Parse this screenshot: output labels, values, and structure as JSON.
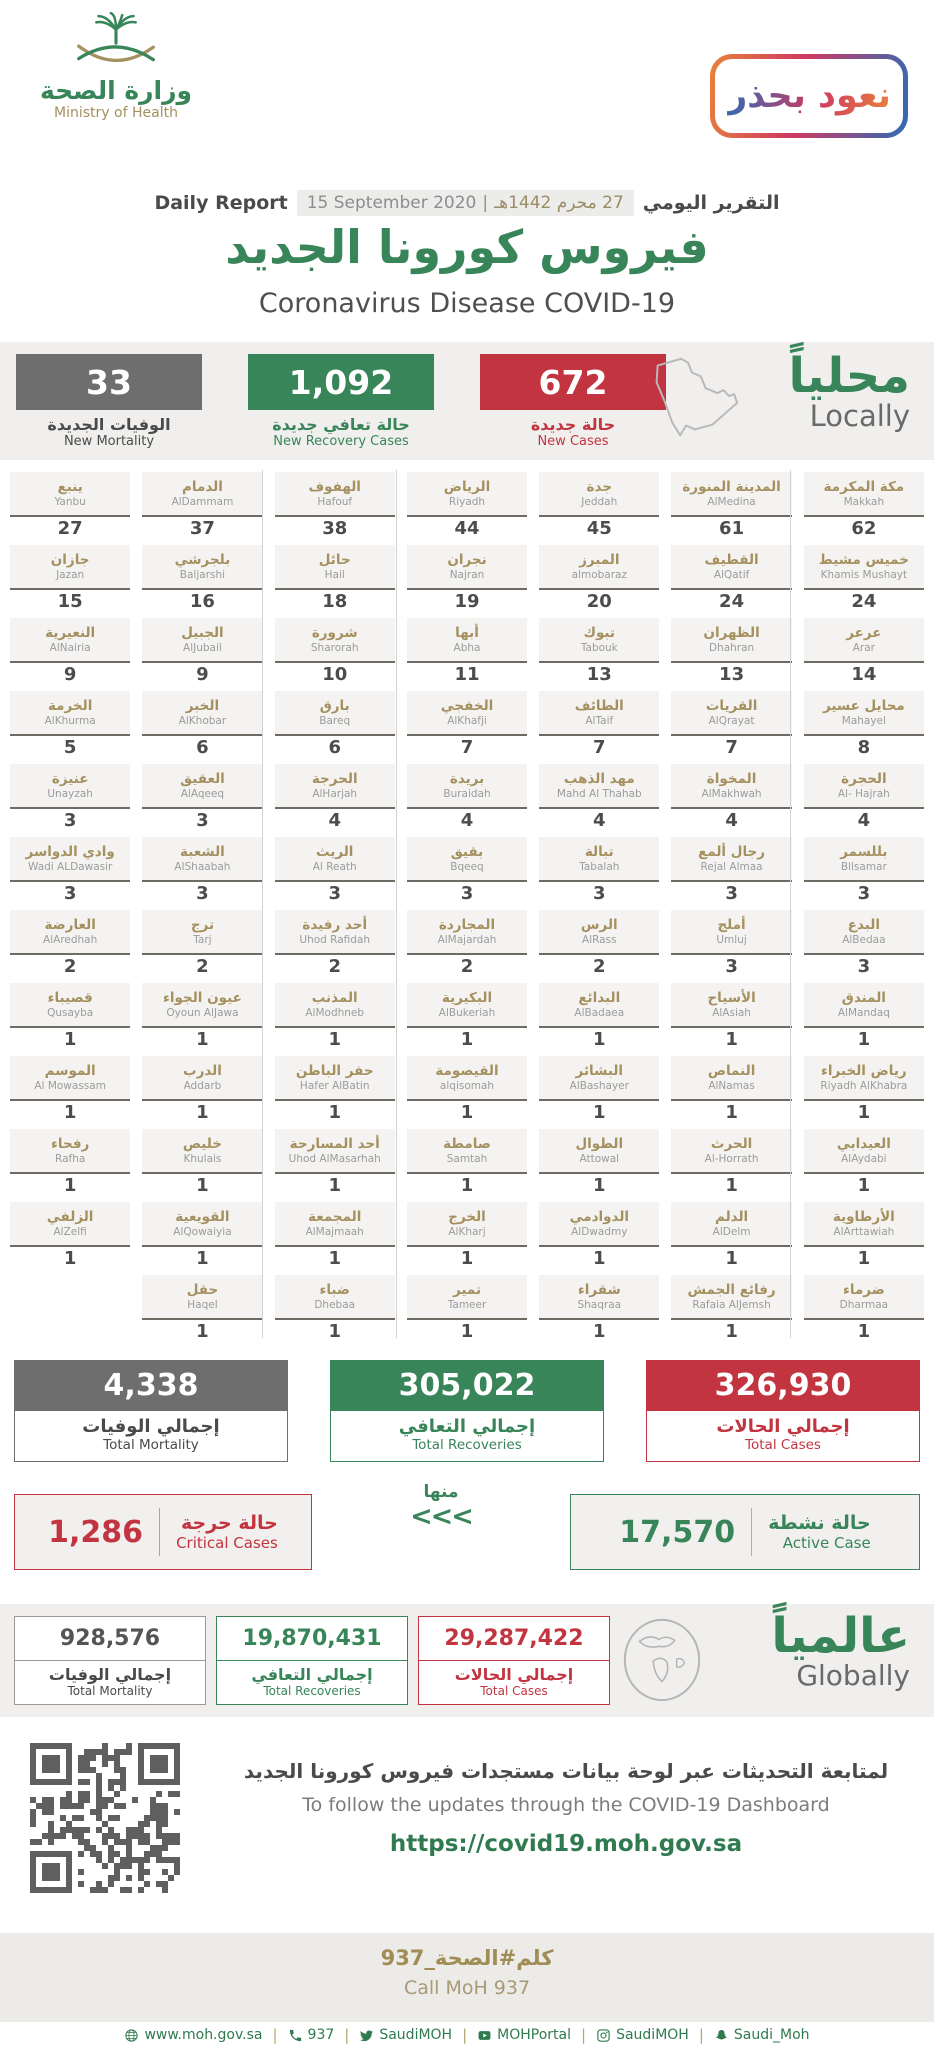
{
  "colors": {
    "green": "#38855a",
    "red": "#c23540",
    "gray": "#6e6e6e",
    "gold": "#a5905f",
    "dark": "#4a4a4a"
  },
  "header": {
    "logo": {
      "arabic": "وزارة الصحة",
      "english": "Ministry of Health"
    },
    "badge_text": "نعود بحذر",
    "report_label_en": "Daily Report",
    "report_date_en": "15 September 2020",
    "report_date_sep": "|",
    "report_date_ar": "27 محرم 1442هـ",
    "report_label_ar": "التقرير اليومي",
    "title_ar": "فيروس كورونا الجديد",
    "title_en": "Coronavirus Disease COVID-19"
  },
  "locally": {
    "title_ar": "محلياً",
    "title_en": "Locally",
    "stats": [
      {
        "key": "new-mortality",
        "value": "33",
        "label_ar": "الوفيات الجديدة",
        "label_en": "New Mortality",
        "color": "#6e6e6e",
        "label_color": "#4a4a4a"
      },
      {
        "key": "new-recovery-cases",
        "value": "1,092",
        "label_ar": "حالة تعافي جديدة",
        "label_en": "New Recovery Cases",
        "color": "#38855a",
        "label_color": "#38855a"
      },
      {
        "key": "new-cases",
        "value": "672",
        "label_ar": "حالة جديدة",
        "label_en": "New Cases",
        "color": "#c23540",
        "label_color": "#c23540"
      }
    ]
  },
  "cities": [
    {
      "ar": "مكة المكرمة",
      "en": "Makkah",
      "value": "62"
    },
    {
      "ar": "المدينة المنورة",
      "en": "AlMedina",
      "value": "61"
    },
    {
      "ar": "جدة",
      "en": "Jeddah",
      "value": "45"
    },
    {
      "ar": "الرياض",
      "en": "Riyadh",
      "value": "44"
    },
    {
      "ar": "الهفوف",
      "en": "Hafouf",
      "value": "38"
    },
    {
      "ar": "الدمام",
      "en": "AlDammam",
      "value": "37"
    },
    {
      "ar": "ينبع",
      "en": "Yanbu",
      "value": "27"
    },
    {
      "ar": "خميس مشيط",
      "en": "Khamis Mushayt",
      "value": "24"
    },
    {
      "ar": "القطيف",
      "en": "AlQatif",
      "value": "24"
    },
    {
      "ar": "المبرز",
      "en": "almobaraz",
      "value": "20"
    },
    {
      "ar": "نجران",
      "en": "Najran",
      "value": "19"
    },
    {
      "ar": "حائل",
      "en": "Hail",
      "value": "18"
    },
    {
      "ar": "بلجرشي",
      "en": "Baljarshi",
      "value": "16"
    },
    {
      "ar": "جازان",
      "en": "Jazan",
      "value": "15"
    },
    {
      "ar": "عرعر",
      "en": "Arar",
      "value": "14"
    },
    {
      "ar": "الظهران",
      "en": "Dhahran",
      "value": "13"
    },
    {
      "ar": "تبوك",
      "en": "Tabouk",
      "value": "13"
    },
    {
      "ar": "أبها",
      "en": "Abha",
      "value": "11"
    },
    {
      "ar": "شرورة",
      "en": "Sharorah",
      "value": "10"
    },
    {
      "ar": "الجبيل",
      "en": "AlJubail",
      "value": "9"
    },
    {
      "ar": "النعيرية",
      "en": "AlNairia",
      "value": "9"
    },
    {
      "ar": "محايل عسير",
      "en": "Mahayel",
      "value": "8"
    },
    {
      "ar": "القريات",
      "en": "AlQrayat",
      "value": "7"
    },
    {
      "ar": "الطائف",
      "en": "AlTaif",
      "value": "7"
    },
    {
      "ar": "الخفجي",
      "en": "AlKhafji",
      "value": "7"
    },
    {
      "ar": "بارق",
      "en": "Bareq",
      "value": "6"
    },
    {
      "ar": "الخبر",
      "en": "AlKhobar",
      "value": "6"
    },
    {
      "ar": "الخرمة",
      "en": "AlKhurma",
      "value": "5"
    },
    {
      "ar": "الحجرة",
      "en": "Al- Hajrah",
      "value": "4"
    },
    {
      "ar": "المخواة",
      "en": "AlMakhwah",
      "value": "4"
    },
    {
      "ar": "مهد الذهب",
      "en": "Mahd Al Thahab",
      "value": "4"
    },
    {
      "ar": "بريدة",
      "en": "Buraidah",
      "value": "4"
    },
    {
      "ar": "الحرجة",
      "en": "AlHarjah",
      "value": "4"
    },
    {
      "ar": "العقيق",
      "en": "AlAqeeq",
      "value": "3"
    },
    {
      "ar": "عنيزة",
      "en": "Unayzah",
      "value": "3"
    },
    {
      "ar": "بللسمر",
      "en": "Bllsamar",
      "value": "3"
    },
    {
      "ar": "رجال ألمع",
      "en": "Rejal Almaa",
      "value": "3"
    },
    {
      "ar": "تبالة",
      "en": "Tabalah",
      "value": "3"
    },
    {
      "ar": "بقيق",
      "en": "Bqeeq",
      "value": "3"
    },
    {
      "ar": "الريث",
      "en": "Al Reath",
      "value": "3"
    },
    {
      "ar": "الشعبة",
      "en": "AlShaabah",
      "value": "3"
    },
    {
      "ar": "وادي الدواسر",
      "en": "Wadi ALDawasir",
      "value": "3"
    },
    {
      "ar": "البدع",
      "en": "AlBedaa",
      "value": "3"
    },
    {
      "ar": "أملج",
      "en": "Umluj",
      "value": "3"
    },
    {
      "ar": "الرس",
      "en": "AlRass",
      "value": "2"
    },
    {
      "ar": "المجاردة",
      "en": "AlMajardah",
      "value": "2"
    },
    {
      "ar": "أحد رفيدة",
      "en": "Uhod Rafidah",
      "value": "2"
    },
    {
      "ar": "ترج",
      "en": "Tarj",
      "value": "2"
    },
    {
      "ar": "العارضة",
      "en": "AlAredhah",
      "value": "2"
    },
    {
      "ar": "المندق",
      "en": "AlMandaq",
      "value": "1"
    },
    {
      "ar": "الأسياح",
      "en": "AlAsiah",
      "value": "1"
    },
    {
      "ar": "البدائع",
      "en": "AlBadaea",
      "value": "1"
    },
    {
      "ar": "البكيرية",
      "en": "AlBukeriah",
      "value": "1"
    },
    {
      "ar": "المذنب",
      "en": "AlModhneb",
      "value": "1"
    },
    {
      "ar": "عيون الجواء",
      "en": "Oyoun AlJawa",
      "value": "1"
    },
    {
      "ar": "قصيباء",
      "en": "Qusayba",
      "value": "1"
    },
    {
      "ar": "رياض الخبراء",
      "en": "Riyadh AlKhabra",
      "value": "1"
    },
    {
      "ar": "النماص",
      "en": "AlNamas",
      "value": "1"
    },
    {
      "ar": "البشائر",
      "en": "AlBashayer",
      "value": "1"
    },
    {
      "ar": "القيصومة",
      "en": "alqisomah",
      "value": "1"
    },
    {
      "ar": "حفر الباطن",
      "en": "Hafer AlBatin",
      "value": "1"
    },
    {
      "ar": "الدرب",
      "en": "Addarb",
      "value": "1"
    },
    {
      "ar": "الموسم",
      "en": "Al Mowassam",
      "value": "1"
    },
    {
      "ar": "العيدابي",
      "en": "AlAydabi",
      "value": "1"
    },
    {
      "ar": "الحرث",
      "en": "Al-Horrath",
      "value": "1"
    },
    {
      "ar": "الطوال",
      "en": "Attowal",
      "value": "1"
    },
    {
      "ar": "صامطة",
      "en": "Samtah",
      "value": "1"
    },
    {
      "ar": "أحد المسارحة",
      "en": "Uhod AlMasarhah",
      "value": "1"
    },
    {
      "ar": "خليص",
      "en": "Khulais",
      "value": "1"
    },
    {
      "ar": "رفحاء",
      "en": "Rafha",
      "value": "1"
    },
    {
      "ar": "الأرطاوية",
      "en": "AlArttawiah",
      "value": "1"
    },
    {
      "ar": "الدلم",
      "en": "AlDelm",
      "value": "1"
    },
    {
      "ar": "الدوادمي",
      "en": "AlDwadmy",
      "value": "1"
    },
    {
      "ar": "الخرج",
      "en": "AlKharj",
      "value": "1"
    },
    {
      "ar": "المجمعة",
      "en": "AlMajmaah",
      "value": "1"
    },
    {
      "ar": "القويعية",
      "en": "AlQowaiyia",
      "value": "1"
    },
    {
      "ar": "الزلفي",
      "en": "AlZelfi",
      "value": "1"
    },
    {
      "ar": "ضرماء",
      "en": "Dharmaa",
      "value": "1"
    },
    {
      "ar": "رفائع الجمش",
      "en": "Rafaia AlJemsh",
      "value": "1"
    },
    {
      "ar": "شقراء",
      "en": "Shaqraa",
      "value": "1"
    },
    {
      "ar": "تمير",
      "en": "Tameer",
      "value": "1"
    },
    {
      "ar": "ضباء",
      "en": "Dhebaa",
      "value": "1"
    },
    {
      "ar": "حقل",
      "en": "Haqel",
      "value": "1"
    }
  ],
  "totals": [
    {
      "key": "total-mortality",
      "value": "4,338",
      "label_ar": "إجمالي الوفيات",
      "label_en": "Total Mortality",
      "color": "#6e6e6e",
      "label_color": "#4a4a4a"
    },
    {
      "key": "total-recoveries",
      "value": "305,022",
      "label_ar": "إجمالي التعافي",
      "label_en": "Total Recoveries",
      "color": "#38855a",
      "label_color": "#38855a"
    },
    {
      "key": "total-cases",
      "value": "326,930",
      "label_ar": "إجمالي الحالات",
      "label_en": "Total Cases",
      "color": "#c23540",
      "label_color": "#c23540"
    }
  ],
  "cases_status": {
    "critical": {
      "value": "1,286",
      "label_ar": "حالة حرجة",
      "label_en": "Critical Cases"
    },
    "of_which": "منها",
    "chevrons": "<<<",
    "active": {
      "value": "17,570",
      "label_ar": "حالة نشطة",
      "label_en": "Active Case"
    }
  },
  "globally": {
    "title_ar": "عالمياً",
    "title_en": "Globally",
    "stats": [
      {
        "key": "global-total-mortality",
        "value": "928,576",
        "label_ar": "إجمالي الوفيات",
        "label_en": "Total Mortality",
        "color": "#9a9a9a",
        "num_color": "#555555",
        "label_color": "#4a4a4a"
      },
      {
        "key": "global-total-recoveries",
        "value": "19,870,431",
        "label_ar": "إجمالي التعافي",
        "label_en": "Total Recoveries",
        "color": "#38855a",
        "num_color": "#38855a",
        "label_color": "#38855a"
      },
      {
        "key": "global-total-cases",
        "value": "29,287,422",
        "label_ar": "إجمالي الحالات",
        "label_en": "Total Cases",
        "color": "#c23540",
        "num_color": "#c23540",
        "label_color": "#c23540"
      }
    ]
  },
  "dashboard": {
    "text_ar": "لمتابعة التحديثات عبر لوحة بيانات مستجدات فيروس كورونا الجديد",
    "text_en": "To follow the updates through the COVID-19 Dashboard",
    "url": "https://covid19.moh.gov.sa"
  },
  "call": {
    "text_ar": "كلم#الصحة_937",
    "text_en": "Call MoH 937"
  },
  "footer": {
    "items": [
      {
        "icon": "globe-icon",
        "label": "www.moh.gov.sa",
        "name": "website-link"
      },
      {
        "icon": "phone-icon",
        "label": "937",
        "name": "phone-number"
      },
      {
        "icon": "twitter-icon",
        "label": "SaudiMOH",
        "name": "twitter-handle"
      },
      {
        "icon": "youtube-icon",
        "label": "MOHPortal",
        "name": "youtube-handle"
      },
      {
        "icon": "instagram-icon",
        "label": "SaudiMOH",
        "name": "instagram-handle"
      },
      {
        "icon": "snapchat-icon",
        "label": "Saudi_Moh",
        "name": "snapchat-handle"
      }
    ]
  }
}
